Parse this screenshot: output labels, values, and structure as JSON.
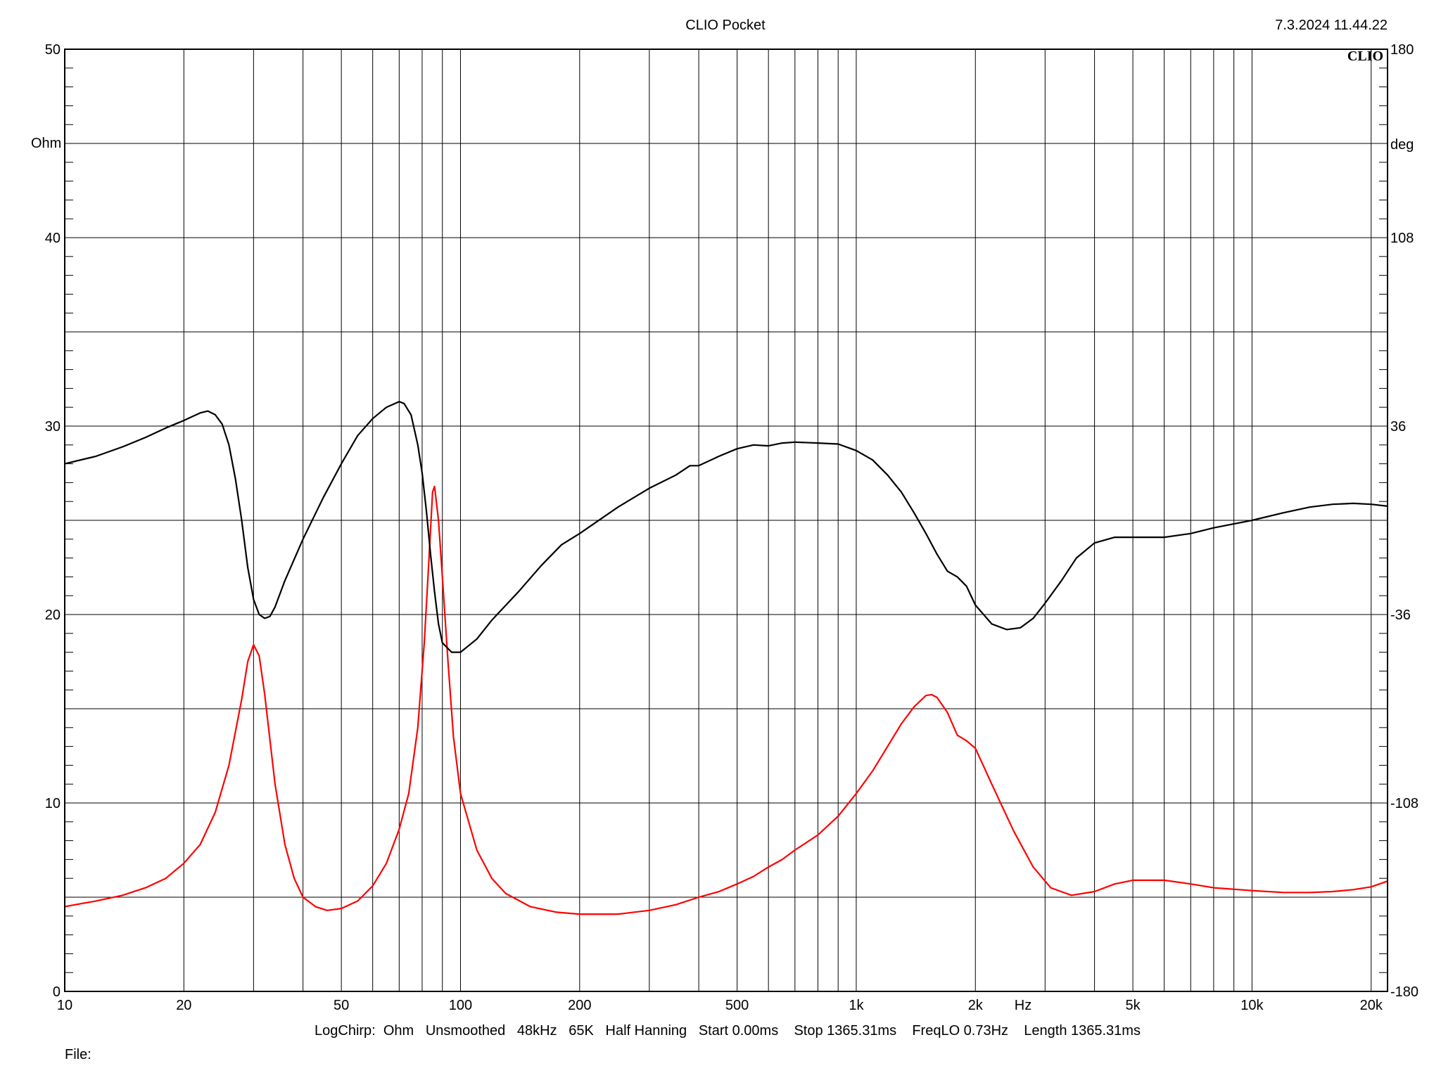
{
  "header": {
    "title": "CLIO Pocket",
    "datetime": "7.3.2024 11.44.22",
    "logo_text": "CLIO"
  },
  "footer": {
    "settings": "LogChirp:  Ohm   Unsmoothed   48kHz   65K   Half Hanning   Start 0.00ms    Stop 1365.31ms    FreqLO 0.73Hz    Length 1365.31ms",
    "file_label": "File:"
  },
  "chart_data": {
    "type": "line",
    "xscale": "log",
    "xlim": [
      10,
      22000
    ],
    "ylim": [
      0,
      50
    ],
    "y2lim": [
      -180,
      180
    ],
    "grid": true,
    "xlabel": "Hz",
    "ylabel": "Ohm",
    "y2label": "deg",
    "x_ticks": [
      {
        "value": 10,
        "label": "10"
      },
      {
        "value": 20,
        "label": "20"
      },
      {
        "value": 50,
        "label": "50"
      },
      {
        "value": 100,
        "label": "100"
      },
      {
        "value": 200,
        "label": "200"
      },
      {
        "value": 500,
        "label": "500"
      },
      {
        "value": 1000,
        "label": "1k"
      },
      {
        "value": 2000,
        "label": "2k"
      },
      {
        "value": 5000,
        "label": "5k"
      },
      {
        "value": 10000,
        "label": "10k"
      },
      {
        "value": 20000,
        "label": "20k"
      }
    ],
    "y_ticks": [
      {
        "value": 0,
        "label": "0"
      },
      {
        "value": 10,
        "label": "10"
      },
      {
        "value": 20,
        "label": "20"
      },
      {
        "value": 30,
        "label": "30"
      },
      {
        "value": 40,
        "label": "40"
      },
      {
        "value": 50,
        "label": "50"
      }
    ],
    "y2_ticks": [
      {
        "value": -180,
        "label": "-180"
      },
      {
        "value": -108,
        "label": "-108"
      },
      {
        "value": -36,
        "label": "-36"
      },
      {
        "value": 36,
        "label": "36"
      },
      {
        "value": 108,
        "label": "108"
      },
      {
        "value": 180,
        "label": "180"
      }
    ],
    "series": [
      {
        "color": "#ff0000",
        "axis": "left",
        "points": [
          [
            10,
            4.5
          ],
          [
            12,
            4.8
          ],
          [
            14,
            5.1
          ],
          [
            16,
            5.5
          ],
          [
            18,
            6.0
          ],
          [
            20,
            6.8
          ],
          [
            22,
            7.8
          ],
          [
            24,
            9.5
          ],
          [
            26,
            12.0
          ],
          [
            28,
            15.5
          ],
          [
            29,
            17.5
          ],
          [
            30,
            18.4
          ],
          [
            31,
            17.8
          ],
          [
            32,
            15.8
          ],
          [
            34,
            11.0
          ],
          [
            36,
            7.8
          ],
          [
            38,
            6.0
          ],
          [
            40,
            5.0
          ],
          [
            43,
            4.5
          ],
          [
            46,
            4.3
          ],
          [
            50,
            4.4
          ],
          [
            55,
            4.8
          ],
          [
            60,
            5.6
          ],
          [
            65,
            6.8
          ],
          [
            70,
            8.6
          ],
          [
            74,
            10.5
          ],
          [
            78,
            14.0
          ],
          [
            81,
            18.5
          ],
          [
            83,
            22.5
          ],
          [
            85,
            26.5
          ],
          [
            86,
            26.8
          ],
          [
            88,
            25.0
          ],
          [
            90,
            22.0
          ],
          [
            93,
            17.5
          ],
          [
            96,
            13.5
          ],
          [
            100,
            10.5
          ],
          [
            110,
            7.5
          ],
          [
            120,
            6.0
          ],
          [
            130,
            5.2
          ],
          [
            150,
            4.5
          ],
          [
            175,
            4.2
          ],
          [
            200,
            4.1
          ],
          [
            250,
            4.1
          ],
          [
            300,
            4.3
          ],
          [
            350,
            4.6
          ],
          [
            400,
            5.0
          ],
          [
            450,
            5.3
          ],
          [
            500,
            5.7
          ],
          [
            550,
            6.1
          ],
          [
            600,
            6.6
          ],
          [
            650,
            7.0
          ],
          [
            700,
            7.5
          ],
          [
            800,
            8.3
          ],
          [
            900,
            9.3
          ],
          [
            1000,
            10.5
          ],
          [
            1100,
            11.7
          ],
          [
            1200,
            13.0
          ],
          [
            1300,
            14.2
          ],
          [
            1400,
            15.1
          ],
          [
            1500,
            15.7
          ],
          [
            1550,
            15.75
          ],
          [
            1600,
            15.6
          ],
          [
            1700,
            14.8
          ],
          [
            1800,
            13.6
          ],
          [
            1900,
            13.3
          ],
          [
            2000,
            12.9
          ],
          [
            2200,
            11.0
          ],
          [
            2500,
            8.5
          ],
          [
            2800,
            6.6
          ],
          [
            3100,
            5.5
          ],
          [
            3500,
            5.1
          ],
          [
            4000,
            5.3
          ],
          [
            4500,
            5.7
          ],
          [
            5000,
            5.9
          ],
          [
            6000,
            5.9
          ],
          [
            7000,
            5.7
          ],
          [
            8000,
            5.5
          ],
          [
            10000,
            5.35
          ],
          [
            12000,
            5.25
          ],
          [
            14000,
            5.25
          ],
          [
            16000,
            5.3
          ],
          [
            18000,
            5.4
          ],
          [
            20000,
            5.55
          ],
          [
            22000,
            5.85
          ]
        ]
      },
      {
        "color": "#000000",
        "axis": "left",
        "points": [
          [
            10,
            28.0
          ],
          [
            12,
            28.4
          ],
          [
            14,
            28.9
          ],
          [
            16,
            29.4
          ],
          [
            18,
            29.9
          ],
          [
            20,
            30.3
          ],
          [
            22,
            30.7
          ],
          [
            23,
            30.8
          ],
          [
            24,
            30.6
          ],
          [
            25,
            30.1
          ],
          [
            26,
            29.0
          ],
          [
            27,
            27.2
          ],
          [
            28,
            25.0
          ],
          [
            29,
            22.5
          ],
          [
            30,
            20.8
          ],
          [
            31,
            20.0
          ],
          [
            32,
            19.8
          ],
          [
            33,
            19.9
          ],
          [
            34,
            20.4
          ],
          [
            36,
            21.8
          ],
          [
            40,
            24.0
          ],
          [
            45,
            26.2
          ],
          [
            50,
            28.0
          ],
          [
            55,
            29.5
          ],
          [
            60,
            30.4
          ],
          [
            65,
            31.0
          ],
          [
            70,
            31.3
          ],
          [
            72,
            31.2
          ],
          [
            75,
            30.6
          ],
          [
            78,
            29.0
          ],
          [
            80,
            27.5
          ],
          [
            82,
            25.5
          ],
          [
            84,
            23.2
          ],
          [
            86,
            21.2
          ],
          [
            88,
            19.5
          ],
          [
            90,
            18.5
          ],
          [
            95,
            18.0
          ],
          [
            100,
            18.0
          ],
          [
            110,
            18.7
          ],
          [
            120,
            19.7
          ],
          [
            140,
            21.2
          ],
          [
            160,
            22.6
          ],
          [
            180,
            23.7
          ],
          [
            200,
            24.3
          ],
          [
            250,
            25.7
          ],
          [
            300,
            26.7
          ],
          [
            350,
            27.4
          ],
          [
            380,
            27.9
          ],
          [
            400,
            27.9
          ],
          [
            450,
            28.4
          ],
          [
            500,
            28.8
          ],
          [
            550,
            29.0
          ],
          [
            600,
            28.95
          ],
          [
            650,
            29.1
          ],
          [
            700,
            29.15
          ],
          [
            800,
            29.1
          ],
          [
            900,
            29.05
          ],
          [
            1000,
            28.7
          ],
          [
            1100,
            28.2
          ],
          [
            1200,
            27.4
          ],
          [
            1300,
            26.5
          ],
          [
            1400,
            25.4
          ],
          [
            1500,
            24.3
          ],
          [
            1600,
            23.2
          ],
          [
            1700,
            22.3
          ],
          [
            1800,
            22.0
          ],
          [
            1900,
            21.5
          ],
          [
            2000,
            20.5
          ],
          [
            2200,
            19.5
          ],
          [
            2400,
            19.2
          ],
          [
            2600,
            19.3
          ],
          [
            2800,
            19.8
          ],
          [
            3000,
            20.6
          ],
          [
            3300,
            21.8
          ],
          [
            3600,
            23.0
          ],
          [
            4000,
            23.8
          ],
          [
            4500,
            24.1
          ],
          [
            5000,
            24.1
          ],
          [
            6000,
            24.1
          ],
          [
            7000,
            24.3
          ],
          [
            8000,
            24.6
          ],
          [
            10000,
            25.0
          ],
          [
            12000,
            25.4
          ],
          [
            14000,
            25.7
          ],
          [
            16000,
            25.85
          ],
          [
            18000,
            25.9
          ],
          [
            20000,
            25.85
          ],
          [
            22000,
            25.75
          ]
        ]
      }
    ]
  }
}
